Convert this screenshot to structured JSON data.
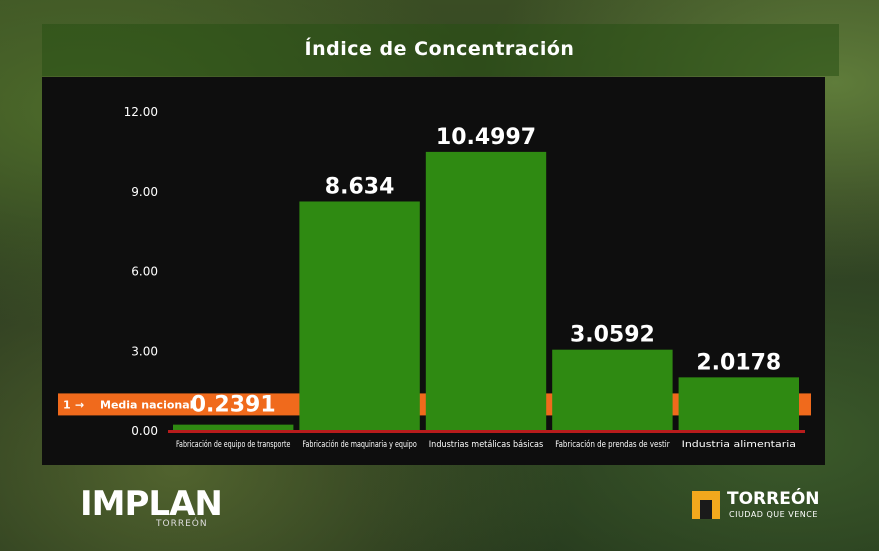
{
  "chart_data": {
    "type": "bar",
    "title": "Índice de Concentración",
    "categories": [
      "Fabricación de equipo de transporte",
      "Fabricación de maquinaria y equipo",
      "Industrias metálicas básicas",
      "Fabricación de prendas de vestir",
      "Industria alimentaria"
    ],
    "values": [
      0.2391,
      8.634,
      10.4997,
      3.0592,
      2.0178
    ],
    "value_labels": [
      "0.2391",
      "8.634",
      "10.4997",
      "3.0592",
      "2.0178"
    ],
    "yticks": [
      "12.00",
      "9.00",
      "6.00",
      "3.00",
      "0.00"
    ],
    "ytick_values": [
      12,
      9,
      6,
      3,
      0
    ],
    "ylim": [
      0,
      12
    ],
    "reference_line": {
      "value": 1,
      "label_value": "1",
      "arrow": "→",
      "label": "Media nacional"
    },
    "colors": {
      "bar": "#2f8a12",
      "reference": "#f06a1c",
      "baseline": "#b81c1c",
      "text": "#ffffff"
    }
  },
  "logos": {
    "implan": {
      "name": "IMPLAN",
      "sub": "TORREÓN"
    },
    "torreon": {
      "name": "TORREÓN",
      "tagline": "CIUDAD QUE VENCE"
    }
  }
}
